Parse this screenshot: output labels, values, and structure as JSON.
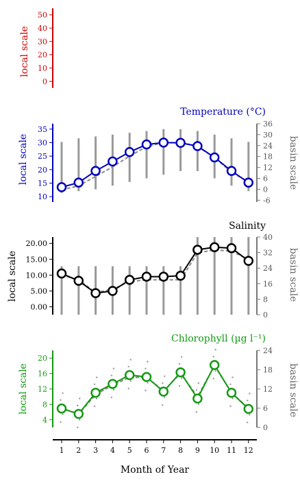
{
  "chart_data": [
    {
      "panel": "top",
      "type": "line",
      "title": "",
      "ylabel": "local scale",
      "ylim": [
        -5,
        55
      ],
      "yticks": [
        0,
        10,
        20,
        30,
        40,
        50
      ],
      "color": "#cc0000",
      "series": []
    },
    {
      "panel": "temperature",
      "type": "line",
      "title": "Temperature (°C)",
      "ylabel": "local scale",
      "ylabel_right": "basin scale",
      "color": "#0000bb",
      "ylim": [
        8,
        37
      ],
      "yticks": [
        10,
        15,
        20,
        25,
        30,
        35
      ],
      "ylim_right": [
        -7,
        36
      ],
      "yticks_right": [
        -6,
        0,
        6,
        12,
        18,
        24,
        30,
        36
      ],
      "x": [
        1,
        2,
        3,
        4,
        5,
        6,
        7,
        8,
        9,
        10,
        11,
        12
      ],
      "series": [
        {
          "values": [
            13.5,
            15.2,
            19.5,
            23.0,
            26.5,
            29.3,
            30.0,
            29.9,
            28.7,
            24.5,
            19.5,
            15.2
          ]
        }
      ],
      "basin_mean": [
        12.5,
        14.0,
        17.5,
        21.0,
        25.0,
        28.5,
        30.0,
        30.0,
        28.5,
        24.5,
        19.0,
        15.5
      ],
      "basin_range": [
        [
          -2,
          26
        ],
        [
          -1,
          28
        ],
        [
          0,
          29
        ],
        [
          2,
          30
        ],
        [
          4,
          31
        ],
        [
          6,
          32
        ],
        [
          8,
          33
        ],
        [
          10,
          33
        ],
        [
          10,
          32
        ],
        [
          6,
          30
        ],
        [
          2,
          28
        ],
        [
          -1,
          26
        ]
      ]
    },
    {
      "panel": "salinity",
      "type": "line",
      "title": "Salinity",
      "ylabel": "local scale",
      "ylabel_right": "basin scale",
      "color": "#000000",
      "ylim": [
        -2.5,
        22
      ],
      "yticks": [
        "0.00",
        "5.00",
        "10.00",
        "15.00",
        "20.00"
      ],
      "ylim_right": [
        0,
        40
      ],
      "yticks_right": [
        0,
        8,
        16,
        24,
        32,
        40
      ],
      "x": [
        1,
        2,
        3,
        4,
        5,
        6,
        7,
        8,
        9,
        10,
        11,
        12
      ],
      "series": [
        {
          "values": [
            10.5,
            8.2,
            4.3,
            5.0,
            8.5,
            9.5,
            9.5,
            9.8,
            18.0,
            18.8,
            18.5,
            14.5
          ]
        }
      ],
      "basin_mean": [
        10.0,
        8.5,
        4.5,
        5.5,
        8.0,
        8.5,
        8.5,
        8.5,
        17.0,
        18.0,
        17.5,
        15.0
      ],
      "basin_range": [
        [
          0,
          25
        ],
        [
          0,
          25
        ],
        [
          0,
          25
        ],
        [
          0,
          25
        ],
        [
          0,
          25
        ],
        [
          0,
          25
        ],
        [
          0,
          25
        ],
        [
          0,
          25
        ],
        [
          0,
          40
        ],
        [
          0,
          40
        ],
        [
          0,
          40
        ],
        [
          0,
          40
        ]
      ]
    },
    {
      "panel": "chlorophyll",
      "type": "line",
      "title": "Chlorophyll (µg l⁻¹)",
      "ylabel": "local scale",
      "ylabel_right": "basin scale",
      "xlabel": "Month of Year",
      "color": "#119911",
      "ylim": [
        2,
        22
      ],
      "yticks": [
        4,
        8,
        12,
        16,
        20
      ],
      "ylim_right": [
        0,
        24
      ],
      "yticks_right": [
        0,
        6,
        12,
        18,
        24
      ],
      "x": [
        1,
        2,
        3,
        4,
        5,
        6,
        7,
        8,
        9,
        10,
        11,
        12
      ],
      "xticks": [
        1,
        2,
        3,
        4,
        5,
        6,
        7,
        8,
        9,
        10,
        11,
        12
      ],
      "series": [
        {
          "values": [
            6.9,
            5.5,
            11.0,
            13.3,
            15.6,
            15.1,
            11.3,
            16.3,
            9.5,
            18.2,
            11.0,
            6.8
          ]
        }
      ],
      "basin_mean": [
        7.0,
        5.5,
        10.5,
        13.0,
        15.0,
        15.0,
        11.5,
        16.0,
        10.0,
        18.0,
        11.0,
        7.0
      ]
    }
  ]
}
